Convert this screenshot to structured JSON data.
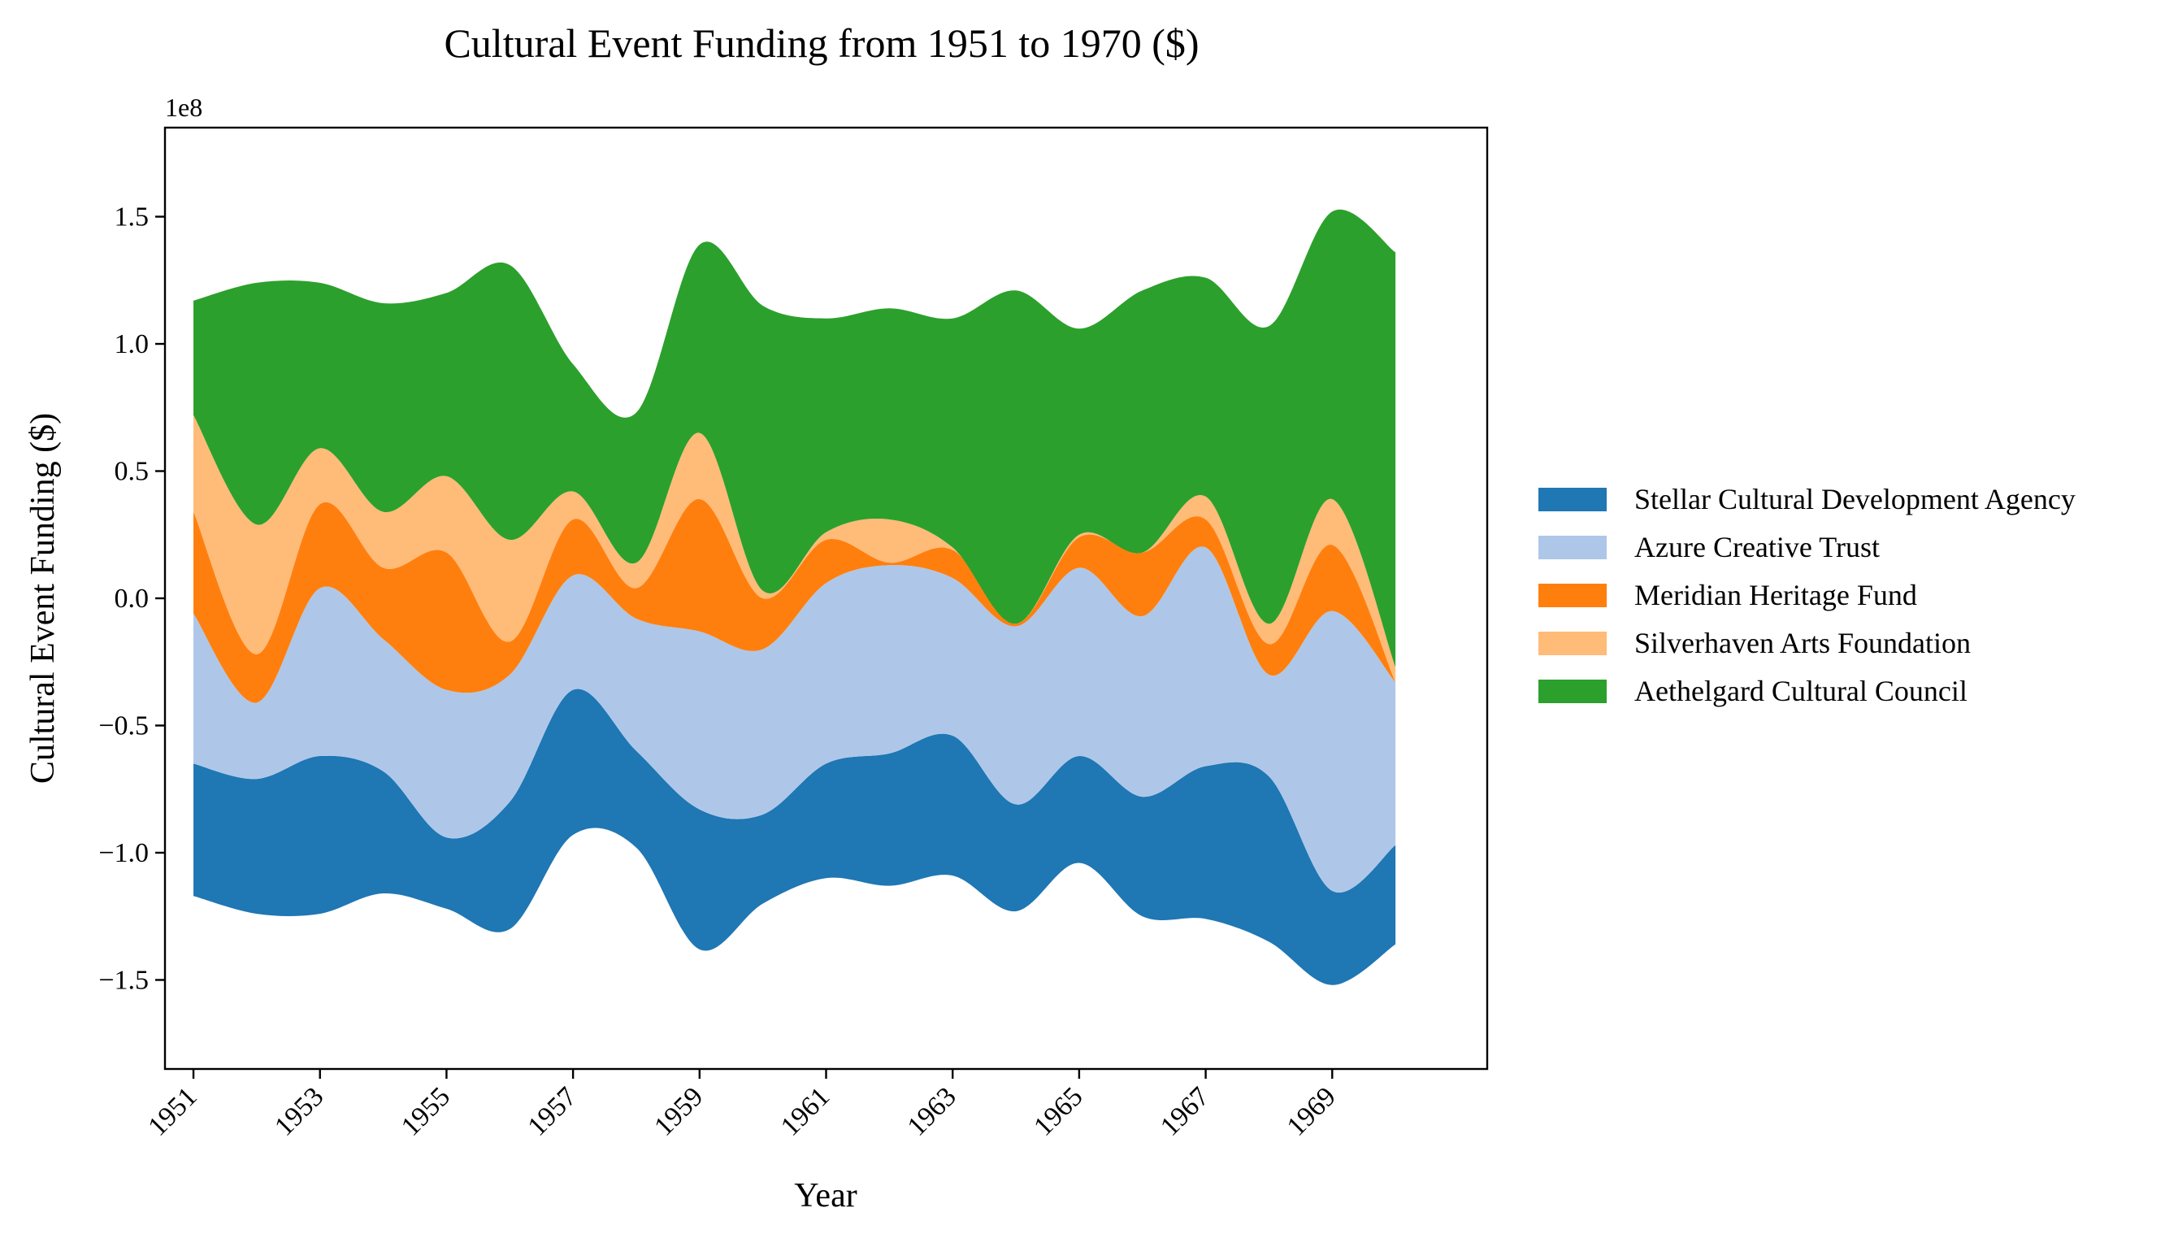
{
  "chart_data": {
    "type": "area",
    "subtype": "streamgraph",
    "title": "Cultural Event Funding from 1951 to 1970 ($)",
    "xlabel": "Year",
    "ylabel": "Cultural Event Funding ($)",
    "y_offset_text": "1e8",
    "y_scale": 100000000,
    "xlim": [
      1950.55,
      1971.45
    ],
    "ylim": [
      -1.85,
      1.85
    ],
    "x": [
      1951,
      1952,
      1953,
      1954,
      1955,
      1956,
      1957,
      1958,
      1959,
      1960,
      1961,
      1962,
      1963,
      1964,
      1965,
      1966,
      1967,
      1968,
      1969,
      1970
    ],
    "x_ticks": [
      1951,
      1953,
      1955,
      1957,
      1959,
      1961,
      1963,
      1965,
      1967,
      1969
    ],
    "x_tick_labels": [
      "1951",
      "1953",
      "1955",
      "1957",
      "1959",
      "1961",
      "1963",
      "1965",
      "1967",
      "1969"
    ],
    "y_ticks": [
      -1.5,
      -1.0,
      -0.5,
      0.0,
      0.5,
      1.0,
      1.5
    ],
    "y_tick_labels": [
      "−1.5",
      "−1.0",
      "−0.5",
      "0.0",
      "0.5",
      "1.0",
      "1.5"
    ],
    "baseline_1e8": [
      -1.17,
      -1.24,
      -1.24,
      -1.16,
      -1.22,
      -1.3,
      -0.93,
      -0.98,
      -1.38,
      -1.2,
      -1.1,
      -1.13,
      -1.09,
      -1.23,
      -1.04,
      -1.25,
      -1.26,
      -1.35,
      -1.52,
      -1.36
    ],
    "series": [
      {
        "name": "Stellar Cultural Development Agency",
        "color": "#1f77b4",
        "values_1e8": [
          0.52,
          0.53,
          0.62,
          0.48,
          0.28,
          0.5,
          0.57,
          0.38,
          0.55,
          0.35,
          0.45,
          0.52,
          0.55,
          0.42,
          0.42,
          0.47,
          0.6,
          0.65,
          0.37,
          0.39
        ]
      },
      {
        "name": "Azure Creative Trust",
        "color": "#aec7e8",
        "values_1e8": [
          0.59,
          0.3,
          0.66,
          0.52,
          0.58,
          0.5,
          0.45,
          0.52,
          0.7,
          0.65,
          0.71,
          0.74,
          0.62,
          0.7,
          0.74,
          0.71,
          0.86,
          0.4,
          1.1,
          0.64
        ]
      },
      {
        "name": "Meridian Heritage Fund",
        "color": "#ff7f0e",
        "values_1e8": [
          0.4,
          0.19,
          0.33,
          0.28,
          0.54,
          0.13,
          0.22,
          0.12,
          0.52,
          0.2,
          0.17,
          0.01,
          0.11,
          0.01,
          0.12,
          0.25,
          0.11,
          0.12,
          0.26,
          0.0
        ]
      },
      {
        "name": "Silverhaven Arts Foundation",
        "color": "#ffbb78",
        "values_1e8": [
          0.38,
          0.51,
          0.22,
          0.22,
          0.3,
          0.4,
          0.11,
          0.1,
          0.26,
          0.03,
          0.03,
          0.17,
          0.01,
          0.0,
          0.01,
          0.0,
          0.09,
          0.08,
          0.18,
          0.06
        ]
      },
      {
        "name": "Aethelgard Cultural Council",
        "color": "#2ca02c",
        "values_1e8": [
          0.45,
          0.95,
          0.65,
          0.82,
          0.72,
          1.08,
          0.5,
          0.59,
          0.74,
          1.12,
          0.84,
          0.83,
          0.9,
          1.31,
          0.81,
          1.03,
          0.86,
          1.17,
          1.13,
          1.63
        ]
      }
    ],
    "legend_position": "center-right-outside",
    "grid": false
  }
}
